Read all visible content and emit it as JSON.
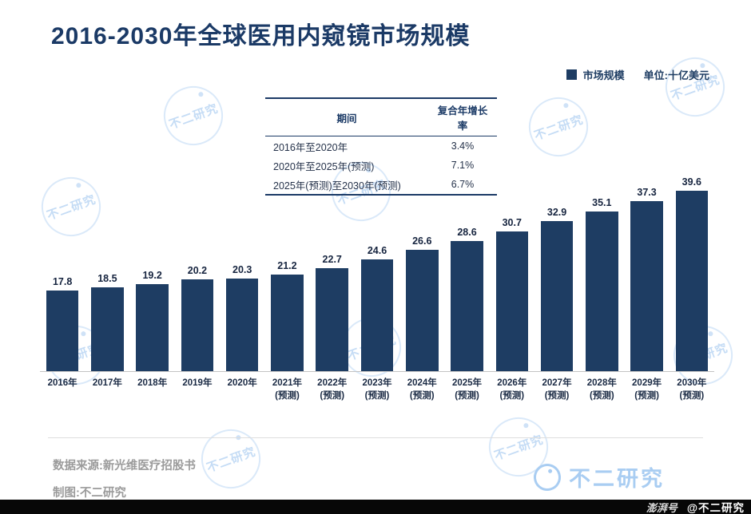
{
  "title": "2016-2030年全球医用内窥镜市场规模",
  "legend": {
    "series": "市场规模",
    "unit": "单位:十亿美元"
  },
  "cagr_table": {
    "headers": [
      "期间",
      "复合年增长率"
    ],
    "rows": [
      [
        "2016年至2020年",
        "3.4%"
      ],
      [
        "2020年至2025年(预测)",
        "7.1%"
      ],
      [
        "2025年(预测)至2030年(预测)",
        "6.7%"
      ]
    ]
  },
  "chart_data": {
    "type": "bar",
    "title": "2016-2030年全球医用内窥镜市场规模",
    "unit": "十亿美元",
    "xlabel": "",
    "ylabel": "市场规模",
    "ylim": [
      0,
      42
    ],
    "grid": false,
    "legend_position": "top-right",
    "bar_color": "#1e3d63",
    "categories": [
      [
        "2016年"
      ],
      [
        "2017年"
      ],
      [
        "2018年"
      ],
      [
        "2019年"
      ],
      [
        "2020年"
      ],
      [
        "2021年",
        "(预测)"
      ],
      [
        "2022年",
        "(预测)"
      ],
      [
        "2023年",
        "(预测)"
      ],
      [
        "2024年",
        "(预测)"
      ],
      [
        "2025年",
        "(预测)"
      ],
      [
        "2026年",
        "(预测)"
      ],
      [
        "2027年",
        "(预测)"
      ],
      [
        "2028年",
        "(预测)"
      ],
      [
        "2029年",
        "(预测)"
      ],
      [
        "2030年",
        "(预测)"
      ]
    ],
    "values": [
      17.8,
      18.5,
      19.2,
      20.2,
      20.3,
      21.2,
      22.7,
      24.6,
      26.6,
      28.6,
      30.7,
      32.9,
      35.1,
      37.3,
      39.6
    ]
  },
  "footer": {
    "source": "数据来源:新光维医疗招股书",
    "credit": "制图:不二研究"
  },
  "branding": {
    "name": "不二研究",
    "badge": "@不二研究",
    "platform": "澎湃号"
  }
}
